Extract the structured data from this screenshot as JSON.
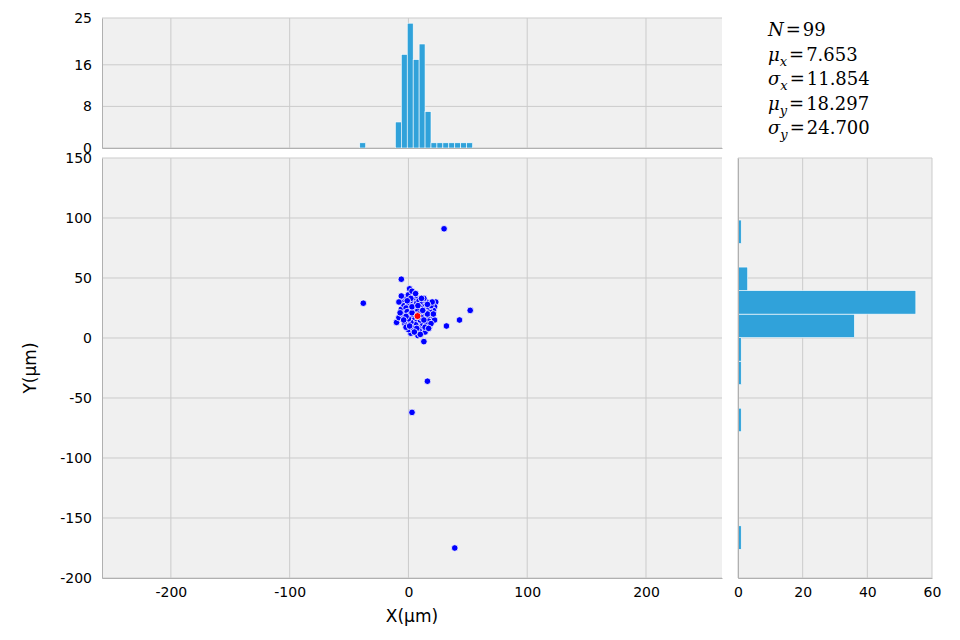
{
  "chart_data": [
    {
      "type": "scatter",
      "x_label": "X(μm)",
      "y_label": "Y(μm)",
      "x": [
        -6,
        -38,
        30,
        52,
        43,
        32,
        16,
        3,
        39,
        23,
        22,
        21,
        20,
        22,
        18,
        14,
        13,
        8,
        2,
        0,
        -3,
        -10,
        -8,
        -5,
        -6,
        -4,
        -5,
        -3,
        0,
        1,
        3,
        6,
        4,
        2,
        0,
        -2,
        -1,
        1,
        3,
        5,
        7,
        9,
        11,
        12,
        10,
        8,
        6,
        4,
        5,
        7,
        9,
        11,
        13,
        15,
        14,
        12,
        16,
        17,
        15,
        19,
        18,
        17,
        15,
        13,
        10,
        8,
        6,
        4,
        2,
        0,
        -2,
        -4,
        -7,
        -2,
        1,
        3,
        9,
        11,
        13,
        16,
        19,
        20,
        16,
        12,
        9,
        7,
        5,
        10,
        14,
        3,
        8,
        11,
        6,
        2,
        -6,
        -8,
        21,
        17,
        -1
      ],
      "y": [
        49,
        29,
        91,
        23,
        15,
        10,
        -36,
        -62,
        -175,
        30,
        26,
        23,
        18,
        15,
        10,
        5,
        -3,
        2,
        4,
        7,
        12,
        13,
        17,
        20,
        24,
        28,
        32,
        34,
        36,
        41,
        39,
        33,
        31,
        29,
        27,
        25,
        22,
        19,
        17,
        15,
        13,
        11,
        9,
        12,
        15,
        18,
        21,
        24,
        27,
        29,
        31,
        28,
        26,
        24,
        21,
        19,
        17,
        14,
        11,
        12,
        22,
        26,
        30,
        33,
        25,
        23,
        11,
        8,
        13,
        16,
        18,
        15,
        21,
        9,
        10,
        21,
        20,
        17,
        15,
        20,
        27,
        30,
        28,
        23,
        6,
        8,
        5,
        3,
        9,
        26,
        27,
        33,
        37,
        33,
        35,
        30,
        20,
        8,
        31
      ],
      "color": "#0000ff",
      "xlim": [
        -258,
        264
      ],
      "ylim": [
        -200,
        150
      ],
      "xticks": [
        -200,
        -100,
        0,
        100,
        200
      ],
      "yticks": [
        -200,
        -150,
        -100,
        -50,
        0,
        50,
        100,
        150
      ],
      "grid": true,
      "stats": [
        {
          "label": "N",
          "relation": "=",
          "value": 99
        },
        {
          "label": "μ",
          "subscript": "x",
          "relation": "=",
          "value": 7.653
        },
        {
          "label": "σ",
          "subscript": "x",
          "relation": "=",
          "value": 11.854
        },
        {
          "label": "μ",
          "subscript": "y",
          "relation": "=",
          "value": 18.297
        },
        {
          "label": "σ",
          "subscript": "y",
          "relation": "=",
          "value": 24.7,
          "value_label": "24.700"
        }
      ]
    },
    {
      "type": "histogram",
      "bins": [
        -41,
        -36,
        -31,
        -26,
        -21,
        -16,
        -11,
        -6,
        -1,
        4,
        9,
        14,
        19,
        24,
        29,
        34,
        39,
        44,
        49,
        54
      ],
      "values": [
        1,
        0,
        0,
        0,
        0,
        0,
        5,
        18,
        24,
        17,
        20,
        7,
        1,
        1,
        1,
        1,
        1,
        1,
        1
      ],
      "color": "#30a2da",
      "xlim": [
        -258,
        264
      ],
      "ylim": [
        0,
        25
      ],
      "xticks": [
        -200,
        -100,
        0,
        100,
        200
      ],
      "yticks": [
        0,
        8,
        16,
        25
      ],
      "grid": true,
      "tick_labels": "y"
    },
    {
      "type": "histogram",
      "orientation": "horizontal",
      "bins": [
        -176.1,
        -156.5,
        -136.9,
        -117.3,
        -97.7,
        -78.1,
        -58.5,
        -38.9,
        -19.3,
        0.3,
        19.9,
        39.5,
        59.1,
        78.7,
        98.3
      ],
      "values": [
        1,
        0,
        0,
        0,
        0,
        1,
        0,
        1,
        1,
        36,
        55,
        3,
        0,
        1
      ],
      "color": "#30a2da",
      "xlim": [
        0,
        60
      ],
      "ylim": [
        -200,
        150
      ],
      "xticks": [
        0,
        20,
        40,
        60
      ],
      "yticks": [
        -200,
        -150,
        -100,
        -50,
        0,
        50,
        100,
        150
      ],
      "grid": true,
      "tick_labels": "x"
    }
  ]
}
